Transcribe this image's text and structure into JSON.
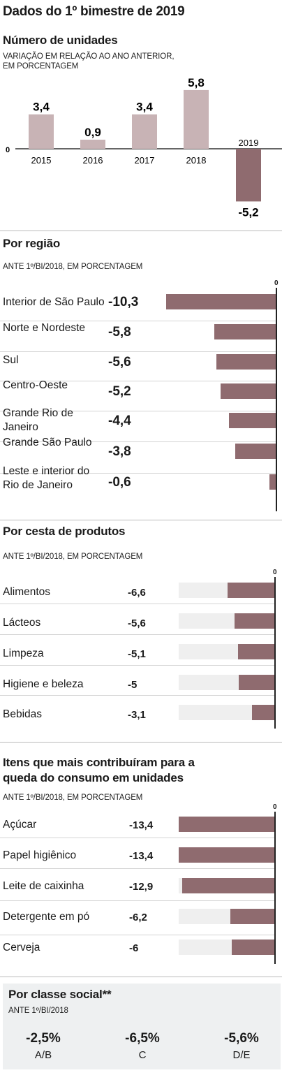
{
  "title": "Dados do 1º bimestre de 2019",
  "units": {
    "heading": "Número de unidades",
    "subtitle_line1": "VARIAÇÃO EM RELAÇÃO AO ANO ANTERIOR,",
    "subtitle_line2": "EM PORCENTAGEM",
    "zero_label": "0"
  },
  "region": {
    "heading": "Por região",
    "subtitle": "ANTE 1º/BI/2018, EM PORCENTAGEM",
    "zero_label": "0",
    "labels": [
      "Interior de São Paulo",
      "Norte e Nordeste",
      "Sul",
      "Centro-Oeste",
      "Grande Rio de Janeiro",
      "Grande São Paulo",
      "Leste e interior do Rio de Janeiro"
    ],
    "value_labels": [
      "-10,3",
      "-5,8",
      "-5,6",
      "-5,2",
      "-4,4",
      "-3,8",
      "-0,6"
    ]
  },
  "basket": {
    "heading": "Por cesta de produtos",
    "subtitle": "ANTE 1º/BI/2018, EM PORCENTAGEM",
    "zero_label": "0",
    "labels": [
      "Alimentos",
      "Lácteos",
      "Limpeza",
      "Higiene e beleza",
      "Bebidas"
    ],
    "value_labels": [
      "-6,6",
      "-5,6",
      "-5,1",
      "-5",
      "-3,1"
    ]
  },
  "items": {
    "heading_line1": "Itens que mais contribuíram para a",
    "heading_line2": "queda do consumo em unidades",
    "subtitle": "ANTE 1º/BI/2018, EM PORCENTAGEM",
    "zero_label": "0",
    "labels": [
      "Açúcar",
      "Papel higiênico",
      "Leite de caixinha",
      "Detergente em pó",
      "Cerveja"
    ],
    "value_labels": [
      "-13,4",
      "-13,4",
      "-12,9",
      "-6,2",
      "-6"
    ]
  },
  "social": {
    "heading": "Por classe social**",
    "subtitle": "ANTE 1º/BI/2018",
    "classes": [
      {
        "value": "-2,5%",
        "label": "A/B"
      },
      {
        "value": "-6,5%",
        "label": "C"
      },
      {
        "value": "-5,6%",
        "label": "D/E"
      }
    ]
  },
  "colors": {
    "bar": "#8f6b6f",
    "bar_light": "#c8b3b5",
    "track": "#efefef",
    "panel": "#eef0f1"
  },
  "chart_data": [
    {
      "type": "bar",
      "title": "Número de unidades",
      "subtitle": "VARIAÇÃO EM RELAÇÃO AO ANO ANTERIOR, EM PORCENTAGEM",
      "categories": [
        "2015",
        "2016",
        "2017",
        "2018",
        "2019"
      ],
      "values": [
        3.4,
        0.9,
        3.4,
        5.8,
        -5.2
      ],
      "value_labels": [
        "3,4",
        "0,9",
        "3,4",
        "5,8",
        "-5,2"
      ],
      "ylim": [
        -5.2,
        5.8
      ]
    },
    {
      "type": "bar",
      "orientation": "horizontal",
      "title": "Por região",
      "subtitle": "ANTE 1º/BI/2018, EM PORCENTAGEM",
      "categories": [
        "Interior de São Paulo",
        "Norte e Nordeste",
        "Sul",
        "Centro-Oeste",
        "Grande Rio de Janeiro",
        "Grande São Paulo",
        "Leste e interior do Rio de Janeiro"
      ],
      "values": [
        -10.3,
        -5.8,
        -5.6,
        -5.2,
        -4.4,
        -3.8,
        -0.6
      ],
      "xlim": [
        -10.3,
        0
      ]
    },
    {
      "type": "bar",
      "orientation": "horizontal",
      "title": "Por cesta de produtos",
      "subtitle": "ANTE 1º/BI/2018, EM PORCENTAGEM",
      "categories": [
        "Alimentos",
        "Lácteos",
        "Limpeza",
        "Higiene e beleza",
        "Bebidas"
      ],
      "values": [
        -6.6,
        -5.6,
        -5.1,
        -5,
        -3.1
      ],
      "xlim": [
        -13.4,
        0
      ]
    },
    {
      "type": "bar",
      "orientation": "horizontal",
      "title": "Itens que mais contribuíram para a queda do consumo em unidades",
      "subtitle": "ANTE 1º/BI/2018, EM PORCENTAGEM",
      "categories": [
        "Açúcar",
        "Papel higiênico",
        "Leite de caixinha",
        "Detergente em pó",
        "Cerveja"
      ],
      "values": [
        -13.4,
        -13.4,
        -12.9,
        -6.2,
        -6
      ],
      "xlim": [
        -13.4,
        0
      ]
    }
  ]
}
